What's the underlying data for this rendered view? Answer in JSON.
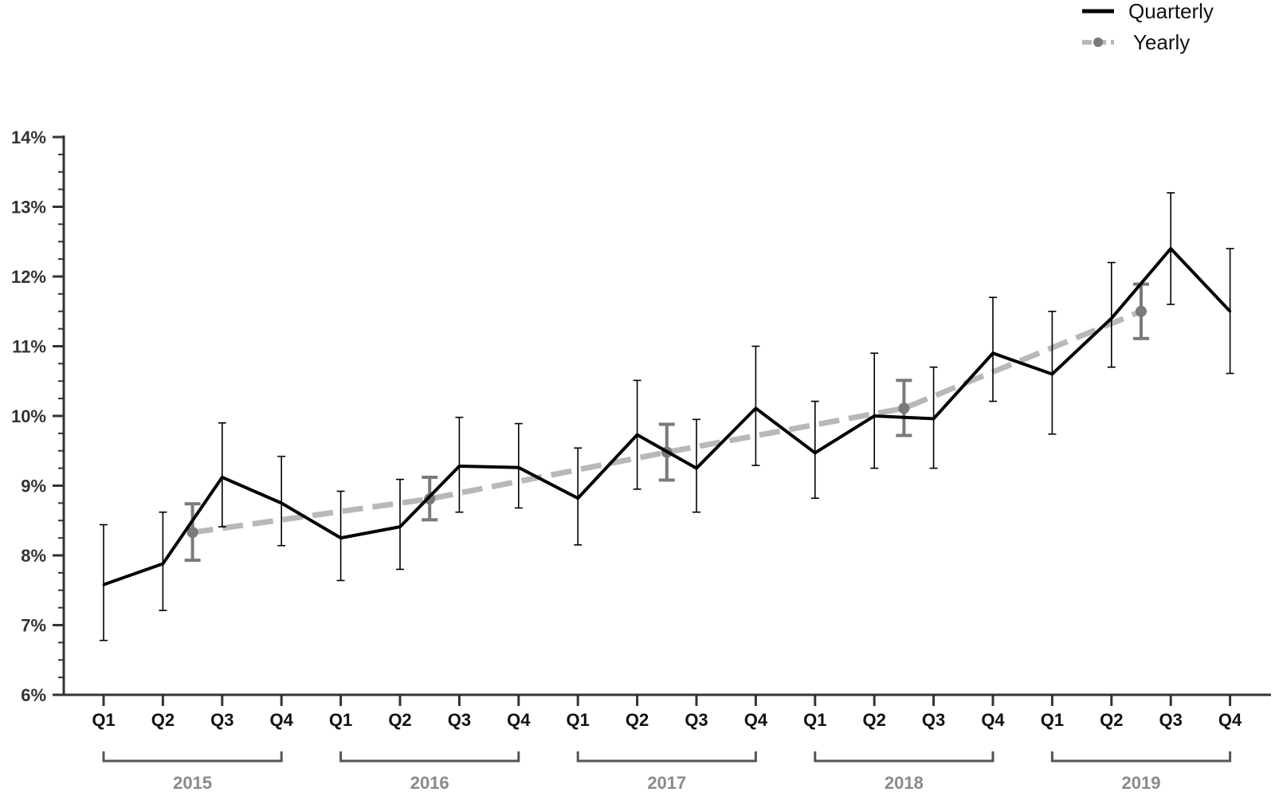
{
  "chart_data": {
    "type": "line",
    "quarter_labels": [
      "Q1",
      "Q2",
      "Q3",
      "Q4",
      "Q1",
      "Q2",
      "Q3",
      "Q4",
      "Q1",
      "Q2",
      "Q3",
      "Q4",
      "Q1",
      "Q2",
      "Q3",
      "Q4",
      "Q1",
      "Q2",
      "Q3",
      "Q4"
    ],
    "years": [
      "2015",
      "2016",
      "2017",
      "2018",
      "2019"
    ],
    "y_ticks": [
      "6%",
      "7%",
      "8%",
      "9%",
      "10%",
      "11%",
      "12%",
      "13%",
      "14%"
    ],
    "ylim": [
      6,
      14
    ],
    "y_unit": "%",
    "grid": false,
    "legend_position": "top-right",
    "series": [
      {
        "name": "Quarterly",
        "style": "solid",
        "color": "#000000",
        "x_index": [
          0,
          1,
          2,
          3,
          4,
          5,
          6,
          7,
          8,
          9,
          10,
          11,
          12,
          13,
          14,
          15,
          16,
          17,
          18,
          19
        ],
        "values": [
          7.58,
          7.88,
          9.12,
          8.75,
          8.25,
          8.41,
          9.28,
          9.26,
          8.82,
          9.73,
          9.25,
          10.11,
          9.47,
          10.0,
          9.96,
          10.9,
          10.6,
          11.4,
          12.4,
          11.5
        ],
        "error_low": [
          6.78,
          7.21,
          8.41,
          8.14,
          7.64,
          7.8,
          8.62,
          8.68,
          8.15,
          8.95,
          8.62,
          9.29,
          8.82,
          9.25,
          9.25,
          10.21,
          9.74,
          10.7,
          11.6,
          10.61
        ],
        "error_high": [
          8.44,
          8.62,
          9.9,
          9.42,
          8.92,
          9.09,
          9.98,
          9.89,
          9.54,
          10.51,
          9.95,
          11.0,
          10.21,
          10.9,
          10.7,
          11.7,
          11.5,
          12.2,
          13.2,
          12.4
        ]
      },
      {
        "name": "Yearly",
        "style": "dashed",
        "color": "#b8b8b8",
        "marker_color": "#7a7a7a",
        "x_index": [
          1.5,
          5.5,
          9.5,
          13.5,
          17.5
        ],
        "values": [
          8.33,
          8.81,
          9.48,
          10.11,
          11.5
        ],
        "error_low": [
          7.93,
          8.51,
          9.08,
          9.72,
          11.11
        ],
        "error_high": [
          8.74,
          9.12,
          9.88,
          10.51,
          11.89
        ]
      }
    ]
  },
  "legend": {
    "items": [
      {
        "label": "Quarterly"
      },
      {
        "label": "Yearly"
      }
    ]
  },
  "colors": {
    "axis": "#333333",
    "quarterly": "#000000",
    "yearly_line": "#b8b8b8",
    "yearly_marker": "#7a7a7a",
    "bracket": "#555555",
    "year_text": "#8a8a8a"
  }
}
